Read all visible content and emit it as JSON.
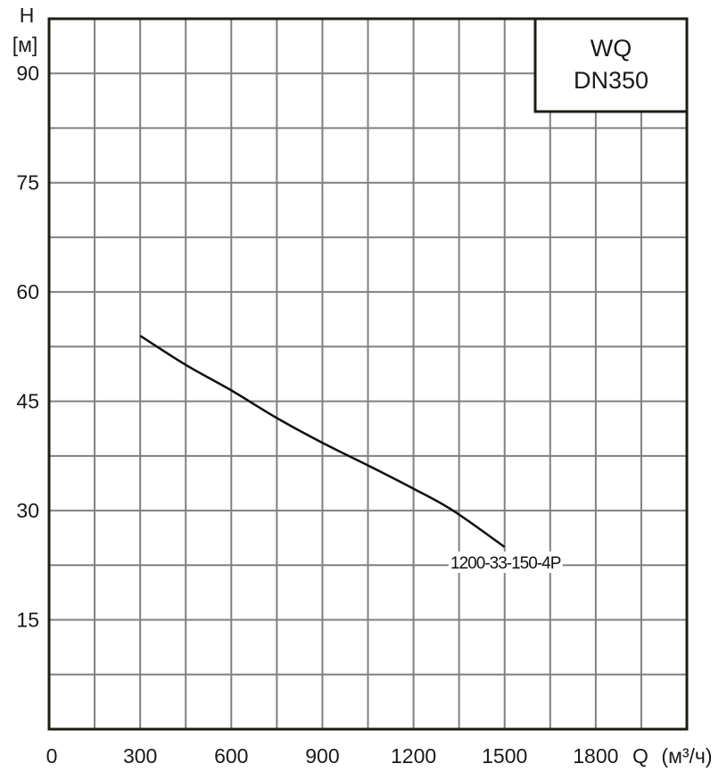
{
  "chart_data": {
    "type": "line",
    "title": "WQ DN350",
    "title_lines": [
      "WQ",
      "DN350"
    ],
    "xlabel": "Q (м³/ч)",
    "xlabel_q": "Q",
    "xlabel_unit": "(м³/ч)",
    "ylabel": "H [м]",
    "ylabel_h": "H",
    "ylabel_unit": "[м]",
    "xlim": [
      0,
      2100
    ],
    "ylim": [
      0,
      97.5
    ],
    "x_ticks": [
      0,
      300,
      600,
      900,
      1200,
      1500,
      1800
    ],
    "y_ticks": [
      15,
      30,
      45,
      60,
      75,
      90
    ],
    "x_grid_step": 150,
    "y_grid_step": 7.5,
    "grid": true,
    "series": [
      {
        "name": "1200-33-150-4P",
        "x": [
          300,
          450,
          600,
          750,
          900,
          1050,
          1200,
          1330,
          1500
        ],
        "y": [
          54,
          50,
          46.5,
          42.7,
          39.3,
          36.2,
          33,
          30,
          25
        ]
      }
    ]
  },
  "colors": {
    "grid": "#808080",
    "axis": "#1a1f14",
    "curve": "#111111"
  }
}
